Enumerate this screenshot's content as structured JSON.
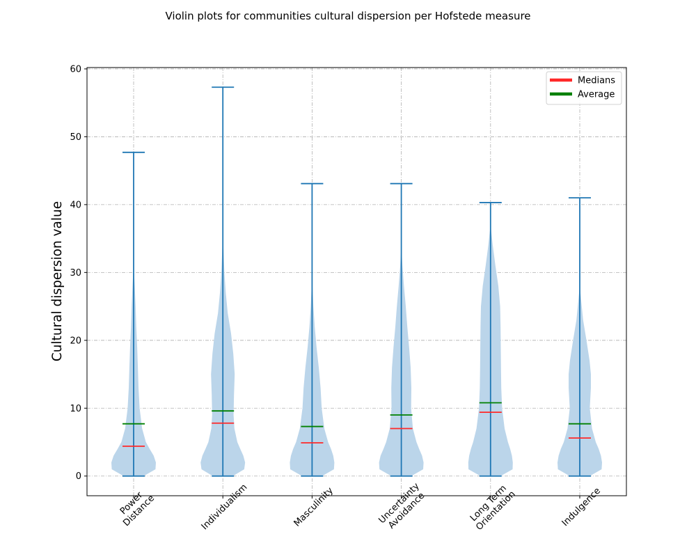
{
  "chart_data": {
    "type": "violin",
    "title": "Violin plots for communities cultural dispersion per Hofstede measure",
    "xlabel": "",
    "ylabel": "Cultural dispersion value",
    "ylim": [
      -2.9,
      60.2
    ],
    "yticks": [
      0,
      10,
      20,
      30,
      40,
      50,
      60
    ],
    "categories": [
      [
        "Power",
        "Distance"
      ],
      [
        "Individualism"
      ],
      [
        "Masculinity"
      ],
      [
        "Uncertainty",
        "Avoidance"
      ],
      [
        "Long Term",
        "Orientation"
      ],
      [
        "Indulgence"
      ]
    ],
    "series": [
      {
        "min": 0,
        "max": 47.7,
        "median": 4.4,
        "mean": 7.7
      },
      {
        "min": 0,
        "max": 57.3,
        "median": 7.8,
        "mean": 9.6
      },
      {
        "min": 0,
        "max": 43.1,
        "median": 4.9,
        "mean": 7.3
      },
      {
        "min": 0,
        "max": 43.1,
        "median": 7.0,
        "mean": 9.0
      },
      {
        "min": 0,
        "max": 40.3,
        "median": 9.4,
        "mean": 10.8
      },
      {
        "min": 0,
        "max": 41.0,
        "median": 5.6,
        "mean": 7.7
      }
    ],
    "density_profiles": [
      [
        [
          0,
          0.45
        ],
        [
          1,
          0.98
        ],
        [
          2,
          1.0
        ],
        [
          3,
          0.9
        ],
        [
          4,
          0.72
        ],
        [
          5,
          0.55
        ],
        [
          7,
          0.38
        ],
        [
          10,
          0.27
        ],
        [
          13,
          0.22
        ],
        [
          16,
          0.19
        ],
        [
          19,
          0.16
        ],
        [
          22,
          0.12
        ],
        [
          25,
          0.09
        ],
        [
          28,
          0.05
        ],
        [
          30,
          0.02
        ],
        [
          33,
          0.0
        ]
      ],
      [
        [
          0,
          0.45
        ],
        [
          1,
          0.96
        ],
        [
          2,
          1.0
        ],
        [
          3,
          0.92
        ],
        [
          4,
          0.78
        ],
        [
          5,
          0.65
        ],
        [
          7,
          0.52
        ],
        [
          9,
          0.48
        ],
        [
          12,
          0.5
        ],
        [
          15,
          0.53
        ],
        [
          18,
          0.47
        ],
        [
          21,
          0.37
        ],
        [
          24,
          0.22
        ],
        [
          27,
          0.13
        ],
        [
          30,
          0.07
        ],
        [
          33,
          0.03
        ],
        [
          36,
          0.0
        ]
      ],
      [
        [
          0,
          0.45
        ],
        [
          1,
          0.98
        ],
        [
          2,
          1.0
        ],
        [
          3,
          0.95
        ],
        [
          4,
          0.85
        ],
        [
          5,
          0.72
        ],
        [
          7,
          0.55
        ],
        [
          10,
          0.43
        ],
        [
          13,
          0.38
        ],
        [
          16,
          0.3
        ],
        [
          19,
          0.2
        ],
        [
          22,
          0.12
        ],
        [
          25,
          0.06
        ],
        [
          28,
          0.02
        ],
        [
          30,
          0.0
        ]
      ],
      [
        [
          0,
          0.45
        ],
        [
          1,
          0.98
        ],
        [
          2,
          1.0
        ],
        [
          3,
          0.93
        ],
        [
          4,
          0.8
        ],
        [
          5,
          0.68
        ],
        [
          7,
          0.52
        ],
        [
          10,
          0.44
        ],
        [
          13,
          0.45
        ],
        [
          16,
          0.42
        ],
        [
          19,
          0.35
        ],
        [
          22,
          0.27
        ],
        [
          25,
          0.2
        ],
        [
          28,
          0.12
        ],
        [
          31,
          0.05
        ],
        [
          34,
          0.0
        ]
      ],
      [
        [
          0,
          0.45
        ],
        [
          1,
          0.99
        ],
        [
          2,
          1.0
        ],
        [
          3,
          0.96
        ],
        [
          4,
          0.88
        ],
        [
          5,
          0.78
        ],
        [
          7,
          0.63
        ],
        [
          10,
          0.52
        ],
        [
          13,
          0.48
        ],
        [
          16,
          0.47
        ],
        [
          19,
          0.46
        ],
        [
          22,
          0.45
        ],
        [
          25,
          0.43
        ],
        [
          28,
          0.35
        ],
        [
          31,
          0.22
        ],
        [
          34,
          0.1
        ],
        [
          37,
          0.0
        ]
      ],
      [
        [
          0,
          0.45
        ],
        [
          1,
          0.98
        ],
        [
          2,
          1.0
        ],
        [
          3,
          0.95
        ],
        [
          4,
          0.85
        ],
        [
          5,
          0.72
        ],
        [
          7,
          0.55
        ],
        [
          10,
          0.45
        ],
        [
          13,
          0.5
        ],
        [
          15,
          0.5
        ],
        [
          17,
          0.44
        ],
        [
          20,
          0.3
        ],
        [
          23,
          0.15
        ],
        [
          26,
          0.06
        ],
        [
          28,
          0.0
        ]
      ]
    ],
    "legend": {
      "placement": "top-right",
      "entries": [
        {
          "label": "Medians",
          "color": "#ff2828"
        },
        {
          "label": "Average",
          "color": "#008000"
        }
      ]
    },
    "grid": true,
    "colors": {
      "body": "#bbd5ea",
      "lines": "#1f77b4",
      "median": "#ff2828",
      "mean": "#008000",
      "grid": "#b0b0b0"
    }
  }
}
